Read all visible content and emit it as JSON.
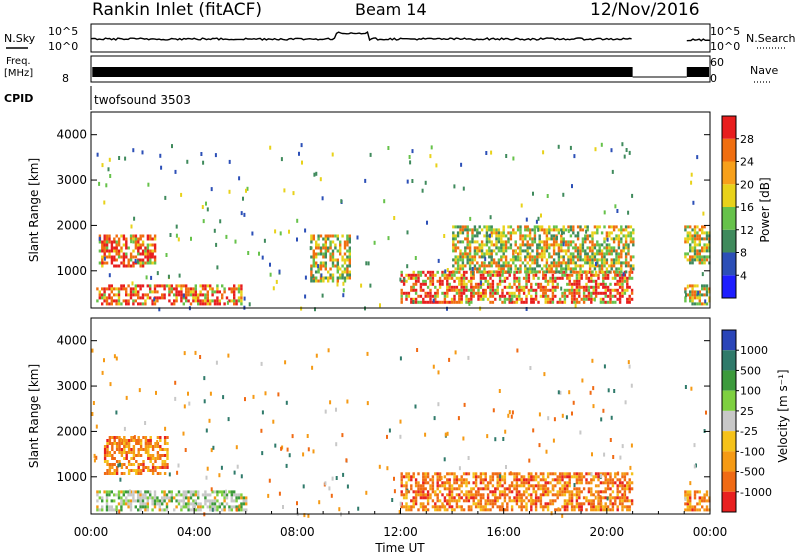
{
  "header": {
    "station": "Rankin Inlet (fitACF)",
    "beam": "Beam 14",
    "date": "12/Nov/2016"
  },
  "noise_panel": {
    "left_label": "N.Sky",
    "right_label": "N.Search",
    "ticks_left": [
      "10^5",
      "10^0"
    ],
    "ticks_right": [
      "10^5",
      "10^0"
    ]
  },
  "freq_panel": {
    "left_label_line1": "Freq.",
    "left_label_line2": "[MHz]",
    "right_label": "Nave",
    "ticks_left": [
      "8"
    ],
    "ticks_right": [
      "60",
      "0"
    ]
  },
  "cpid_panel": {
    "label": "CPID",
    "text": "twofsound 3503"
  },
  "time_axis": {
    "title": "Time UT",
    "tick_labels": [
      "00:00",
      "04:00",
      "08:00",
      "12:00",
      "16:00",
      "20:00",
      "00:00"
    ]
  },
  "chart_data": [
    {
      "type": "heatmap",
      "quantity": "power",
      "ylabel": "Slant Range [km]",
      "xlabel": "Time UT",
      "x_range_hours": [
        0,
        24
      ],
      "ylim": [
        180,
        4500
      ],
      "y_ticks": [
        "1000",
        "2000",
        "3000",
        "4000"
      ],
      "colorbar_label": "Power [dB]",
      "colorbar_ticks": [
        "4",
        "8",
        "12",
        "16",
        "20",
        "24",
        "28"
      ],
      "colorbar_colors": [
        "#1e1eff",
        "#2c4fb7",
        "#3f8a5c",
        "#66c24a",
        "#e8d21a",
        "#f7a01b",
        "#f06e10",
        "#e81e1e"
      ],
      "data_gap_hours": [
        21.0,
        23.0
      ],
      "regions": [
        {
          "t_start_hours": 0.2,
          "t_end_hours": 5.8,
          "range_km": [
            300,
            700
          ],
          "level": "high"
        },
        {
          "t_start_hours": 0.3,
          "t_end_hours": 2.5,
          "range_km": [
            1100,
            1800
          ],
          "level": "high"
        },
        {
          "t_start_hours": 8.5,
          "t_end_hours": 10.0,
          "range_km": [
            800,
            1800
          ],
          "level": "medium"
        },
        {
          "t_start_hours": 12.0,
          "t_end_hours": 21.0,
          "range_km": [
            300,
            1000
          ],
          "level": "high"
        },
        {
          "t_start_hours": 14.0,
          "t_end_hours": 21.0,
          "range_km": [
            1000,
            2000
          ],
          "level": "medium"
        },
        {
          "t_start_hours": 23.0,
          "t_end_hours": 24.0,
          "range_km": [
            300,
            700
          ],
          "level": "medium"
        },
        {
          "t_start_hours": 23.0,
          "t_end_hours": 24.0,
          "range_km": [
            1200,
            2000
          ],
          "level": "medium"
        }
      ]
    },
    {
      "type": "heatmap",
      "quantity": "velocity",
      "ylabel": "Slant Range [km]",
      "xlabel": "Time UT",
      "x_range_hours": [
        0,
        24
      ],
      "ylim": [
        180,
        4500
      ],
      "y_ticks": [
        "1000",
        "2000",
        "3000",
        "4000"
      ],
      "colorbar_label": "Velocity [m s⁻¹]",
      "colorbar_ticks": [
        "1000",
        "500",
        "100",
        "25",
        "-25",
        "-100",
        "-500",
        "-1000"
      ],
      "colorbar_colors": [
        "#2a45b8",
        "#2f7a6a",
        "#3c9a3c",
        "#7ed040",
        "#c8c8c8",
        "#f5c21a",
        "#f59a14",
        "#f06a14",
        "#e82020"
      ],
      "data_gap_hours": [
        21.0,
        23.0
      ],
      "regions": [
        {
          "t_start_hours": 0.2,
          "t_end_hours": 6.0,
          "range_km": [
            300,
            700
          ],
          "level": "low"
        },
        {
          "t_start_hours": 0.5,
          "t_end_hours": 3.0,
          "range_km": [
            1100,
            1900
          ],
          "level": "negative"
        },
        {
          "t_start_hours": 12.0,
          "t_end_hours": 21.0,
          "range_km": [
            300,
            1100
          ],
          "level": "negative"
        },
        {
          "t_start_hours": 23.0,
          "t_end_hours": 24.0,
          "range_km": [
            300,
            700
          ],
          "level": "negative"
        }
      ]
    }
  ]
}
